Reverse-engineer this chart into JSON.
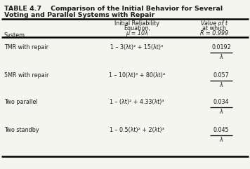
{
  "title_line1": "TABLE 4.7    Comparison of the Initial Behavior for Several",
  "title_line2": "Voting and Parallel Systems with Repair",
  "col1_header": "System",
  "col2_header_l1": "Initial Reliability",
  "col2_header_l2": "Equation,",
  "col2_header_l3": "μ = 10λ",
  "col3_header_l1": "Value of t",
  "col3_header_l2": "at which",
  "col3_header_l3": "R = 0.999",
  "rows": [
    {
      "system": "TMR with repair",
      "equation": "1 – 3(λt)² + 15(λt)³",
      "value_num": "0.0192",
      "value_den": "λ"
    },
    {
      "system": "5MR with repair",
      "equation": "1 – 10(λt)³ + 80(λt)⁴",
      "value_num": "0.057",
      "value_den": "λ"
    },
    {
      "system": "Two parallel",
      "equation": "1 – (λt)² + 4.33(λt)³",
      "value_num": "0.034",
      "value_den": "λ"
    },
    {
      "system": "Two standby",
      "equation": "1 – 0.5(λt)² + 2(λt)³",
      "value_num": "0.045",
      "value_den": "λ"
    }
  ],
  "bg_color": "#f5f5f0",
  "text_color": "#1a1a1a"
}
